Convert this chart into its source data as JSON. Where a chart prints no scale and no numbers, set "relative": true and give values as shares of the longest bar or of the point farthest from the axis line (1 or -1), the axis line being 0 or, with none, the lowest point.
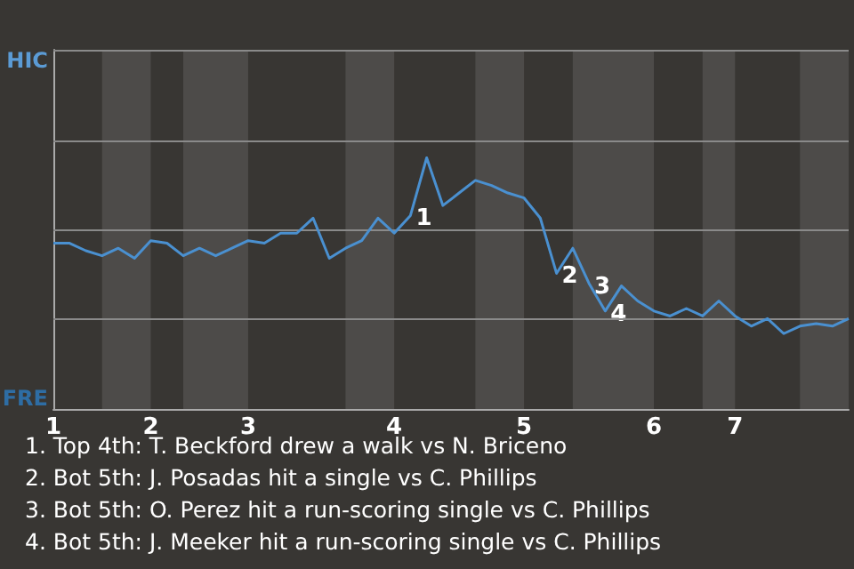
{
  "chart_data": {
    "type": "line",
    "relative": true,
    "categories": [
      "1",
      null,
      null,
      null,
      null,
      null,
      "2",
      null,
      null,
      null,
      null,
      null,
      "3",
      null,
      null,
      null,
      null,
      null,
      null,
      null,
      null,
      "4",
      null,
      null,
      null,
      null,
      null,
      null,
      null,
      "5",
      null,
      null,
      null,
      null,
      null,
      null,
      null,
      "6",
      null,
      null,
      null,
      null,
      "7",
      null,
      null,
      null,
      null,
      null,
      null,
      null
    ],
    "series": [
      {
        "color": "#4a90d0",
        "values": [
          0.66,
          0.66,
          0.63,
          0.61,
          0.64,
          0.6,
          0.67,
          0.66,
          0.61,
          0.64,
          0.61,
          0.64,
          0.67,
          0.66,
          0.7,
          0.7,
          0.76,
          0.6,
          0.64,
          0.67,
          0.76,
          0.7,
          0.77,
          1,
          0.81,
          0.86,
          0.91,
          0.89,
          0.86,
          0.84,
          0.76,
          0.54,
          0.64,
          0.5,
          0.39,
          0.49,
          0.43,
          0.39,
          0.37,
          0.4,
          0.37,
          0.43,
          0.37,
          0.33,
          0.36,
          0.3,
          0.33,
          0.34,
          0.33,
          0.36
        ]
      }
    ],
    "marker": "none",
    "ref_lines": [
      {
        "axis": "y",
        "value": 0.36,
        "color": "#8a8a8a"
      },
      {
        "axis": "y",
        "value": 0.71,
        "color": "#8a8a8a"
      },
      {
        "axis": "y",
        "value": 1.07,
        "color": "#8a8a8a"
      },
      {
        "axis": "y",
        "value": 1.43,
        "color": "#8a8a8a"
      }
    ],
    "annotations": [
      "HIC",
      "FRE",
      "1",
      "2",
      "3",
      "4",
      "1. Top 4th: T. Beckford drew a walk vs N. Briceno",
      "2. Bot 5th: J. Posadas hit a single vs C. Phillips",
      "3. Bot 5th: O. Perez hit a run-scoring single vs C. Phillips",
      "4. Bot 5th: J. Meeker hit a run-scoring single vs C. Phillips"
    ]
  }
}
